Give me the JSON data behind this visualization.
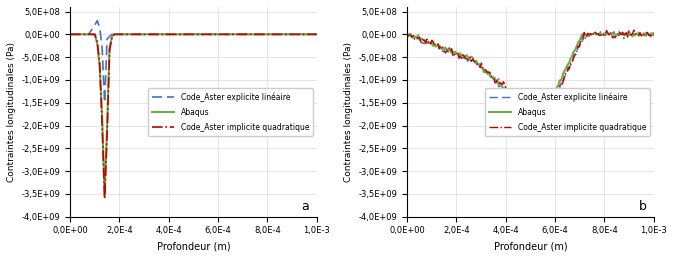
{
  "xlim": [
    0,
    0.001
  ],
  "ylim": [
    -4000000000.0,
    600000000.0
  ],
  "yticks": [
    500000000.0,
    0.0,
    -500000000.0,
    -1000000000.0,
    -1500000000.0,
    -2000000000.0,
    -2500000000.0,
    -3000000000.0,
    -3500000000.0,
    -4000000000.0
  ],
  "xticks": [
    0.0,
    0.0002,
    0.0004,
    0.0006,
    0.0008,
    0.001
  ],
  "xlabel": "Profondeur (m)",
  "ylabel": "Contraintes longitudinales (Pa)",
  "label_ca_exp": "Code_Aster explicite linéaire",
  "label_abaqus": "Abaqus",
  "label_ca_imp": "Code_Aster implicite quadratique",
  "color_ca_exp": "#4472C4",
  "color_abaqus": "#70AD47",
  "color_ca_imp": "#C00000",
  "label_a": "a",
  "label_b": "b",
  "background": "#FFFFFF",
  "grid_color": "#D9D9D9"
}
